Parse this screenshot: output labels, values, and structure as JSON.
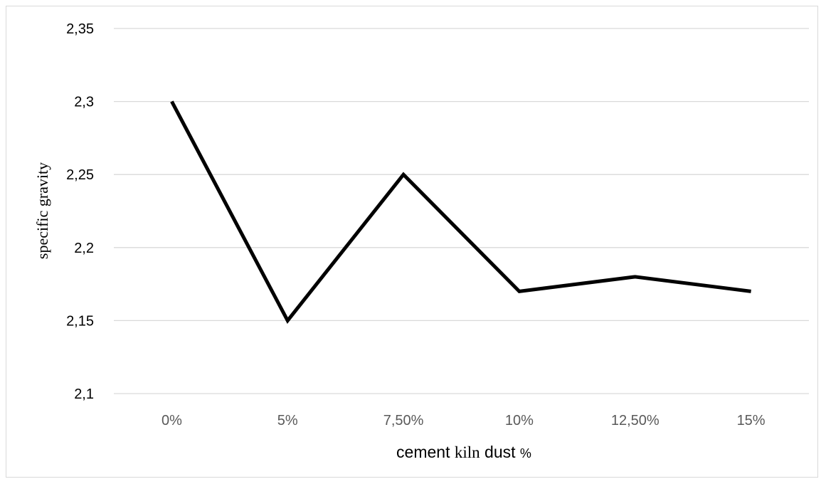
{
  "chart_data": {
    "type": "line",
    "categories": [
      "0%",
      "5%",
      "7,50%",
      "10%",
      "12,50%",
      "15%"
    ],
    "series": [
      {
        "values": [
          2.3,
          2.15,
          2.25,
          2.17,
          2.18,
          2.17
        ]
      }
    ],
    "y_ticks": [
      "2,1",
      "2,15",
      "2,2",
      "2,25",
      "2,3",
      "2,35"
    ],
    "ylim": [
      2.1,
      2.35
    ],
    "xlabel": {
      "part1": "cement ",
      "part2": "kiln",
      "part3": " dust ",
      "part4": "%"
    },
    "ylabel": "specific gravity",
    "grid": true,
    "legend": "none",
    "line_color": "#000000",
    "grid_color": "#d9d9d9"
  }
}
